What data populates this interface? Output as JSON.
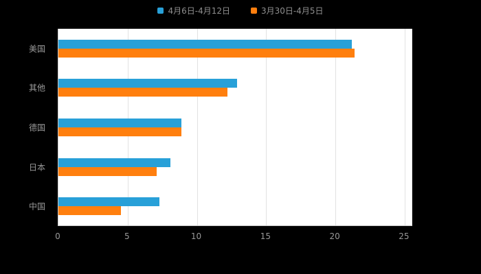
{
  "chart_data": {
    "type": "bar",
    "orientation": "horizontal",
    "title": "",
    "categories": [
      "美国",
      "其他",
      "德国",
      "日本",
      "中国"
    ],
    "series": [
      {
        "name": "4月6日-4月12日",
        "color": "#28a0d8",
        "values": [
          21.2,
          12.9,
          8.9,
          8.1,
          7.3
        ]
      },
      {
        "name": "3月30日-4月5日",
        "color": "#ff7f0e",
        "values": [
          21.4,
          12.2,
          8.9,
          7.1,
          4.5
        ]
      }
    ],
    "xlim": [
      0,
      25.5
    ],
    "xticks": [
      0,
      5,
      10,
      15,
      20,
      25
    ],
    "grid": true,
    "legend_position": "top",
    "colors": {
      "page_background": "#000000",
      "plot_background": "#ffffff",
      "gridline": "#e2e2e2",
      "axis_line": "#c9c9c9",
      "label_text": "#999999",
      "legend_text": "#8f8f8f"
    }
  }
}
